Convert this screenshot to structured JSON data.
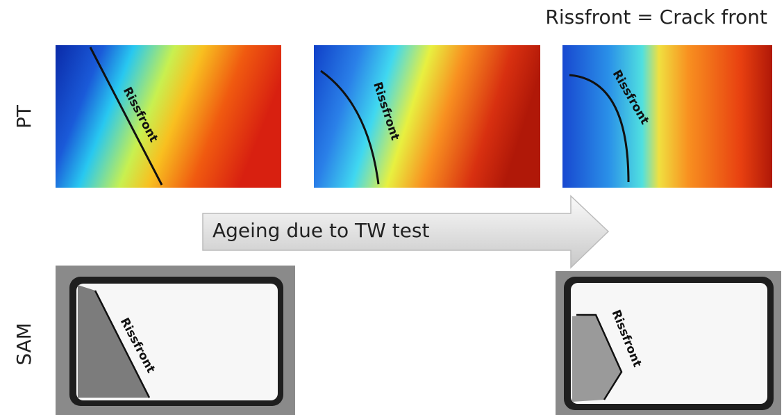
{
  "note": "Rissfront = Crack front",
  "row_labels": [
    "PT",
    "SAM"
  ],
  "pt_panels": [
    {
      "label": "Rissfront"
    },
    {
      "label": "Rissfront"
    },
    {
      "label": "Rissfront"
    }
  ],
  "arrow_label": "Ageing due to TW test",
  "sam_panels": [
    {
      "label": "Rissfront"
    },
    {
      "label": "Rissfront"
    }
  ]
}
